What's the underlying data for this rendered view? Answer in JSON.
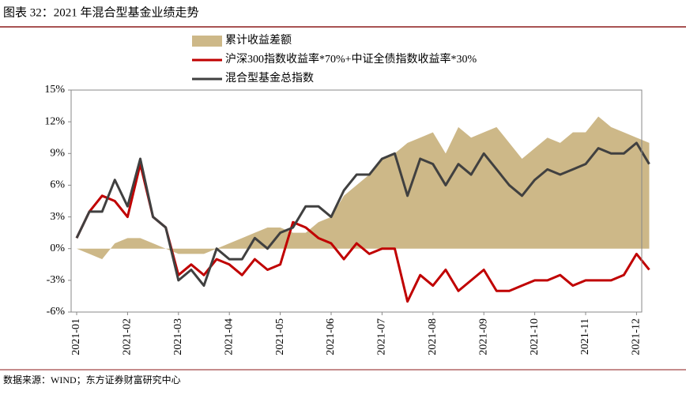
{
  "chart_data": {
    "type": "line",
    "title": "图表 32：2021 年混合型基金业绩走势",
    "source": "数据来源：WIND；东方证券财富研究中心",
    "categories": [
      "2021-01",
      null,
      null,
      null,
      "2021-02",
      null,
      null,
      null,
      "2021-03",
      null,
      null,
      null,
      "2021-04",
      null,
      null,
      null,
      "2021-05",
      null,
      null,
      null,
      "2021-06",
      null,
      null,
      null,
      "2021-07",
      null,
      null,
      null,
      "2021-08",
      null,
      null,
      null,
      "2021-09",
      null,
      null,
      null,
      "2021-10",
      null,
      null,
      null,
      "2021-11",
      null,
      null,
      null,
      "2021-12",
      null
    ],
    "series": [
      {
        "name": "累计收益差额",
        "kind": "area",
        "color": "#cdb888",
        "values": [
          0,
          -0.5,
          -1,
          0.5,
          1,
          1,
          0.5,
          0,
          -0.5,
          -0.5,
          -0.5,
          0,
          0.5,
          1,
          1.5,
          2,
          2,
          1.5,
          1.5,
          2.5,
          3,
          5,
          6,
          7,
          8.5,
          9,
          10,
          10.5,
          11,
          9,
          11.5,
          10.5,
          11,
          11.5,
          10,
          8.5,
          9.5,
          10.5,
          10,
          11,
          11,
          12.5,
          11.5,
          11,
          10.5,
          10
        ]
      },
      {
        "name": "沪深300指数收益率*70%+中证全债指数收益率*30%",
        "kind": "line",
        "color": "#c00000",
        "values": [
          1,
          3.5,
          5,
          4.5,
          3,
          8,
          3,
          2,
          -2.5,
          -1.5,
          -2.5,
          -1,
          -1.5,
          -2.5,
          -1,
          -2,
          -1.5,
          2.5,
          2,
          1,
          0.5,
          -1,
          0.5,
          -0.5,
          0,
          0,
          -5,
          -2.5,
          -3.5,
          -2,
          -4,
          -3,
          -2,
          -4,
          -4,
          -3.5,
          -3,
          -3,
          -2.5,
          -3.5,
          -3,
          -3,
          -3,
          -2.5,
          -0.5,
          -2
        ]
      },
      {
        "name": "混合型基金总指数",
        "kind": "line",
        "color": "#404040",
        "values": [
          1,
          3.5,
          3.5,
          6.5,
          4,
          8.5,
          3,
          2,
          -3,
          -2,
          -3.5,
          0,
          -1,
          -1,
          1,
          0,
          1.5,
          2,
          4,
          4,
          3,
          5.5,
          7,
          7,
          8.5,
          9,
          5,
          8.5,
          8,
          6,
          8,
          7,
          9,
          7.5,
          6,
          5,
          6.5,
          7.5,
          7,
          7.5,
          8,
          9.5,
          9,
          9,
          10,
          8
        ]
      }
    ],
    "ylim": [
      -6,
      15
    ],
    "yticks": [
      {
        "value": -6,
        "label": "-6%"
      },
      {
        "value": -3,
        "label": "-3%"
      },
      {
        "value": 0,
        "label": "0%"
      },
      {
        "value": 3,
        "label": "3%"
      },
      {
        "value": 6,
        "label": "6%"
      },
      {
        "value": 9,
        "label": "9%"
      },
      {
        "value": 12,
        "label": "12%"
      },
      {
        "value": 15,
        "label": "15%"
      }
    ],
    "grid": false,
    "legend": "top"
  }
}
